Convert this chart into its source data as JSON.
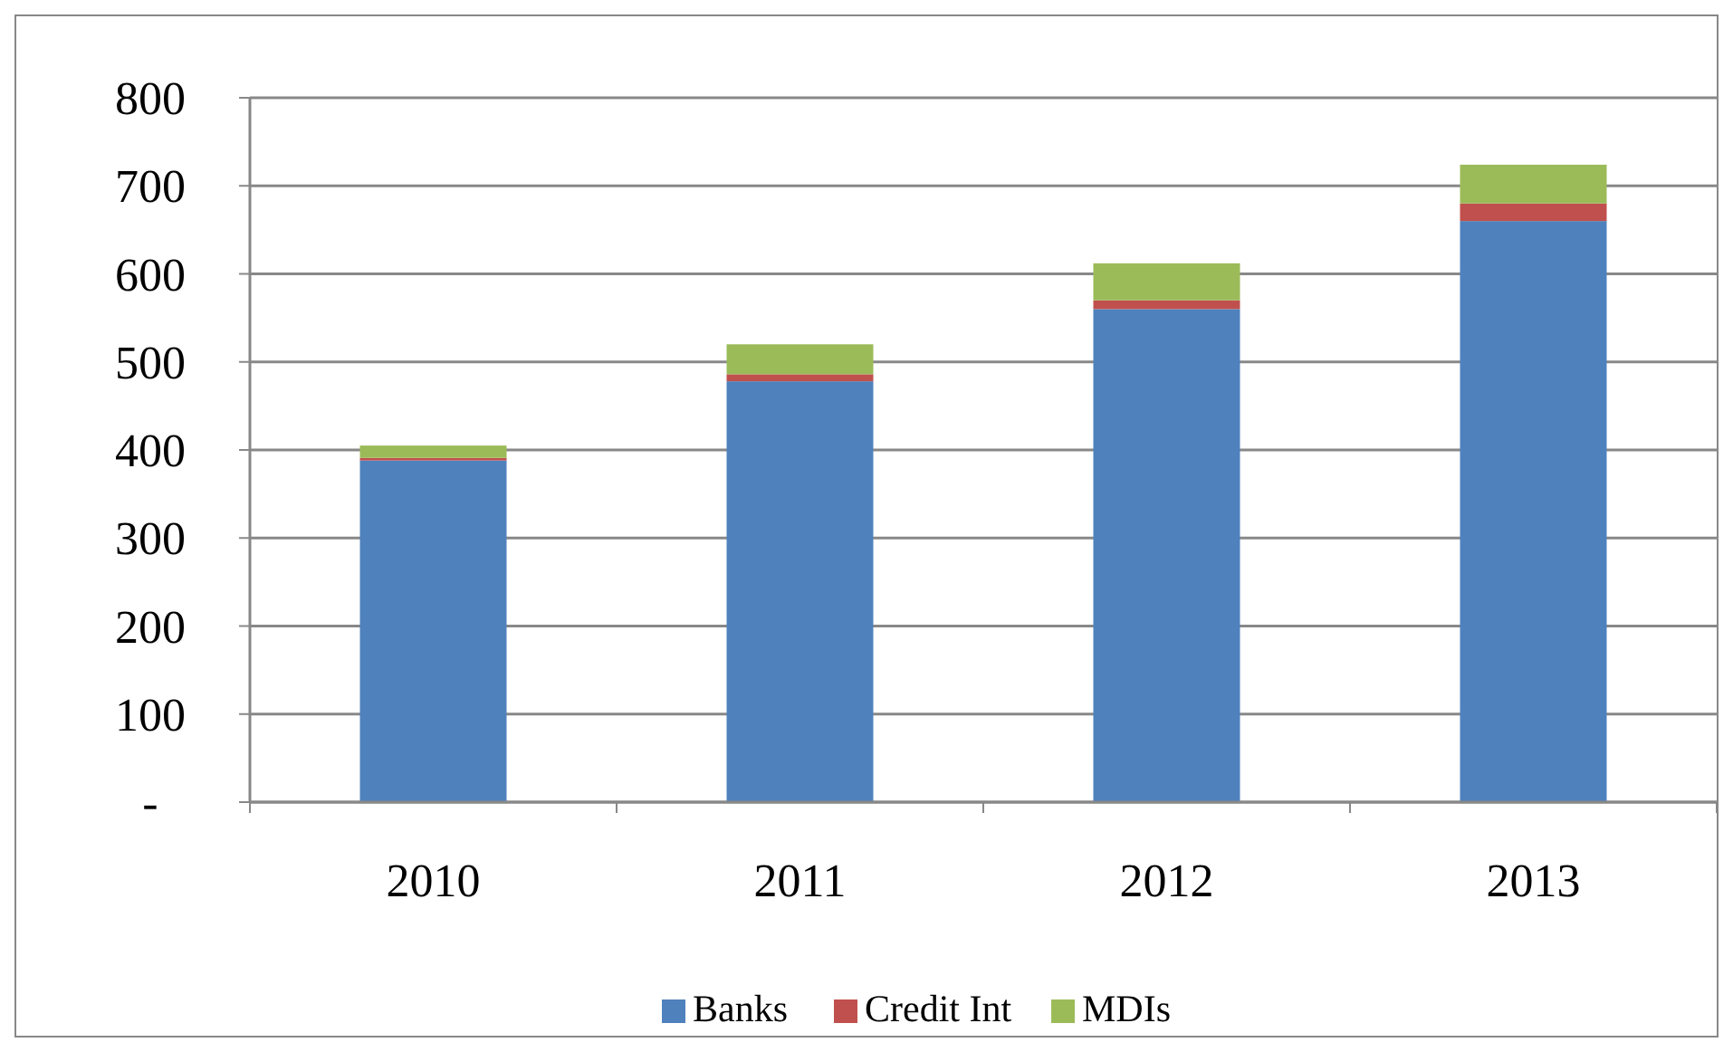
{
  "chart_data": {
    "type": "bar",
    "stacked": true,
    "categories": [
      "2010",
      "2011",
      "2012",
      "2013"
    ],
    "series": [
      {
        "name": "Banks",
        "color": "#4f81bd",
        "values": [
          388,
          478,
          560,
          660
        ]
      },
      {
        "name": "Credit Int",
        "color": "#c0504d",
        "values": [
          3,
          8,
          10,
          20
        ]
      },
      {
        "name": "MDIs",
        "color": "#9bbb59",
        "values": [
          14,
          34,
          42,
          44
        ]
      }
    ],
    "ylim": [
      0,
      800
    ],
    "yticks": [
      {
        "value": 0,
        "label": "-"
      },
      100,
      200,
      300,
      400,
      500,
      600,
      700,
      800
    ],
    "grid": "y",
    "legend": "bottom"
  }
}
